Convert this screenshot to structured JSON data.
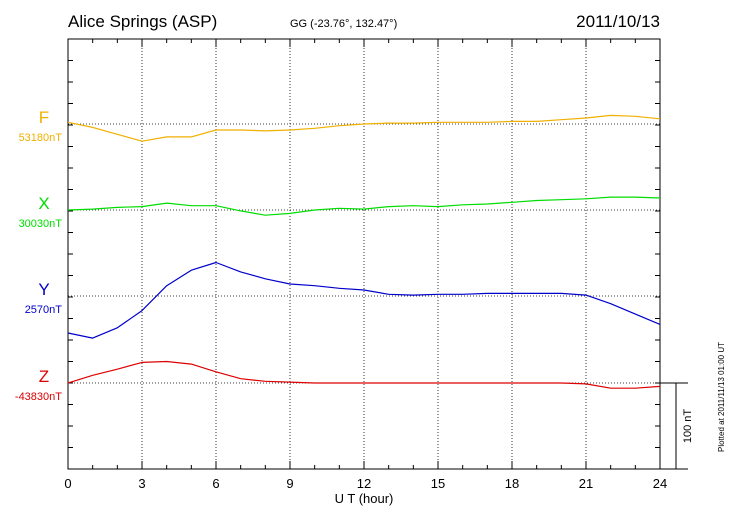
{
  "header": {
    "station": "Alice Springs (ASP)",
    "coords": "GG (-23.76°, 132.47°)",
    "date": "2011/10/13"
  },
  "footer_note": "Plotted at 2011/11/13 01:00 UT",
  "chart_data": {
    "type": "line",
    "xlabel": "U T (hour)",
    "x_ticks": [
      "0",
      "3",
      "6",
      "9",
      "12",
      "15",
      "18",
      "21",
      "24"
    ],
    "xlim": [
      0,
      24
    ],
    "grid": true,
    "scale_bar": {
      "label": "100 nT",
      "value_nT": 100
    },
    "colors": {
      "F": "#f0b000",
      "X": "#00dd00",
      "Y": "#0000cc",
      "Z": "#dd0000"
    },
    "series": [
      {
        "name": "F",
        "baseline_label": "53180nT",
        "baseline_nT": 53180,
        "x": [
          0,
          1,
          2,
          3,
          4,
          5,
          6,
          7,
          8,
          9,
          10,
          11,
          12,
          13,
          14,
          15,
          16,
          17,
          18,
          19,
          20,
          21,
          22,
          23,
          24
        ],
        "values": [
          53182,
          53176,
          53168,
          53160,
          53165,
          53165,
          53173,
          53173,
          53172,
          53173,
          53175,
          53178,
          53180,
          53181,
          53181,
          53182,
          53182,
          53182,
          53183,
          53183,
          53185,
          53187,
          53190,
          53189,
          53186
        ]
      },
      {
        "name": "X",
        "baseline_label": "30030nT",
        "baseline_nT": 30030,
        "x": [
          0,
          1,
          2,
          3,
          4,
          5,
          6,
          7,
          8,
          9,
          10,
          11,
          12,
          13,
          14,
          15,
          16,
          17,
          18,
          19,
          20,
          21,
          22,
          23,
          24
        ],
        "values": [
          30030,
          30031,
          30033,
          30034,
          30038,
          30035,
          30035,
          30029,
          30024,
          30026,
          30030,
          30032,
          30031,
          30034,
          30035,
          30034,
          30036,
          30037,
          30039,
          30041,
          30042,
          30043,
          30045,
          30045,
          30044
        ]
      },
      {
        "name": "Y",
        "baseline_label": "2570nT",
        "baseline_nT": 2570,
        "x": [
          0,
          1,
          2,
          3,
          4,
          5,
          6,
          7,
          8,
          9,
          10,
          11,
          12,
          13,
          14,
          15,
          16,
          17,
          18,
          19,
          20,
          21,
          22,
          23,
          24
        ],
        "values": [
          2527,
          2521,
          2533,
          2553,
          2582,
          2600,
          2609,
          2598,
          2590,
          2584,
          2582,
          2579,
          2577,
          2572,
          2571,
          2572,
          2572,
          2573,
          2573,
          2573,
          2573,
          2571,
          2561,
          2549,
          2537
        ]
      },
      {
        "name": "Z",
        "baseline_label": "-43830nT",
        "baseline_nT": -43830,
        "x": [
          0,
          1,
          2,
          3,
          4,
          5,
          6,
          7,
          8,
          9,
          10,
          11,
          12,
          13,
          14,
          15,
          16,
          17,
          18,
          19,
          20,
          21,
          22,
          23,
          24
        ],
        "values": [
          -43830,
          -43821,
          -43814,
          -43806,
          -43805,
          -43808,
          -43817,
          -43825,
          -43828,
          -43829,
          -43830,
          -43830,
          -43830,
          -43830,
          -43830,
          -43830,
          -43830,
          -43830,
          -43830,
          -43830,
          -43830,
          -43831,
          -43836,
          -43836,
          -43834
        ]
      }
    ]
  }
}
